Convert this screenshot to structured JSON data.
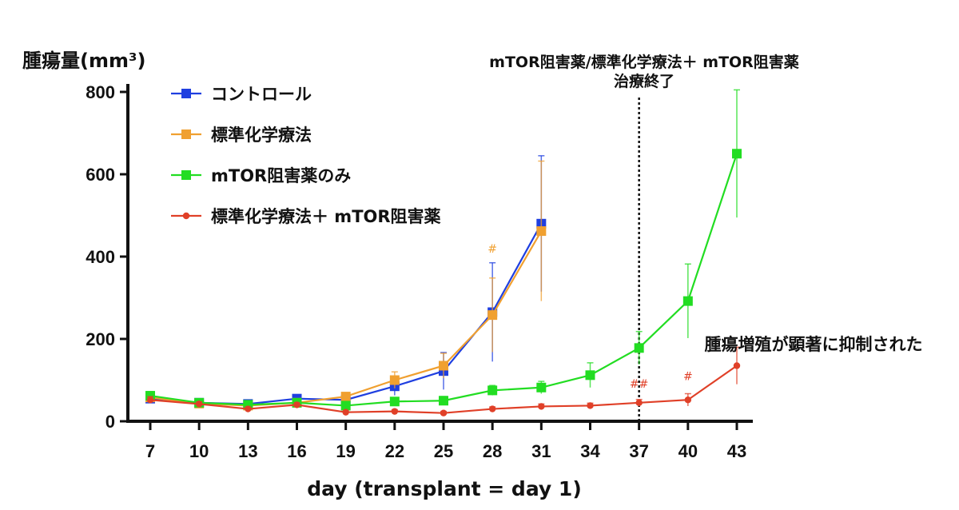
{
  "chart_data": {
    "type": "line",
    "ylabel": "腫瘍量(mm³)",
    "xlabel": "day (transplant = day 1)",
    "ylim": [
      0,
      800
    ],
    "xlim": [
      7,
      43
    ],
    "x": [
      7,
      10,
      13,
      16,
      19,
      22,
      25,
      28,
      31,
      34,
      37,
      40,
      43
    ],
    "x_ticks": [
      "7",
      "10",
      "13",
      "16",
      "19",
      "22",
      "25",
      "28",
      "31",
      "34",
      "37",
      "40",
      "43"
    ],
    "y_ticks": [
      "0",
      "200",
      "400",
      "600",
      "800"
    ],
    "legend_position": "top-left",
    "series": [
      {
        "name": "コントロール",
        "color": "#1f3fe0",
        "marker": "square",
        "x": [
          7,
          10,
          13,
          16,
          19,
          22,
          25,
          28,
          31
        ],
        "values": [
          55,
          45,
          42,
          55,
          52,
          85,
          122,
          265,
          480
        ],
        "errors": [
          10,
          6,
          6,
          8,
          8,
          22,
          45,
          120,
          165
        ]
      },
      {
        "name": "標準化学療法",
        "color": "#f0a030",
        "marker": "square",
        "x": [
          7,
          10,
          13,
          16,
          19,
          22,
          25,
          28,
          31
        ],
        "values": [
          58,
          43,
          38,
          45,
          60,
          100,
          135,
          258,
          462
        ],
        "errors": [
          10,
          6,
          6,
          8,
          8,
          20,
          30,
          90,
          170
        ]
      },
      {
        "name": "mTOR阻害薬のみ",
        "color": "#22dd22",
        "marker": "square",
        "x": [
          7,
          10,
          13,
          16,
          19,
          22,
          25,
          28,
          31,
          34,
          37,
          40,
          43
        ],
        "values": [
          62,
          45,
          40,
          45,
          38,
          48,
          50,
          75,
          82,
          112,
          178,
          292,
          650
        ],
        "errors": [
          10,
          6,
          6,
          6,
          6,
          8,
          10,
          12,
          15,
          30,
          40,
          90,
          155
        ]
      },
      {
        "name": "標準化学療法＋ mTOR阻害薬",
        "color": "#e04028",
        "marker": "circle",
        "x": [
          7,
          10,
          13,
          16,
          19,
          22,
          25,
          28,
          31,
          34,
          37,
          40,
          43
        ],
        "values": [
          52,
          42,
          30,
          40,
          22,
          24,
          20,
          30,
          36,
          38,
          45,
          52,
          135
        ],
        "errors": [
          8,
          5,
          5,
          5,
          4,
          4,
          4,
          5,
          6,
          6,
          8,
          15,
          45
        ]
      }
    ],
    "annotations": [
      {
        "text": "#",
        "x": 28,
        "y": 410,
        "color": "#f0a030"
      },
      {
        "text": "##",
        "x": 37,
        "y": 82,
        "color": "#e04028"
      },
      {
        "text": "#",
        "x": 40,
        "y": 100,
        "color": "#e04028"
      }
    ],
    "vline": {
      "x": 37,
      "label_line1": "mTOR阻害薬/標準化学療法＋ mTOR阻害薬",
      "label_line2": "治療終了"
    },
    "callout": {
      "text": "腫瘍増殖が顕著に抑制された",
      "color": "#e02020"
    }
  }
}
